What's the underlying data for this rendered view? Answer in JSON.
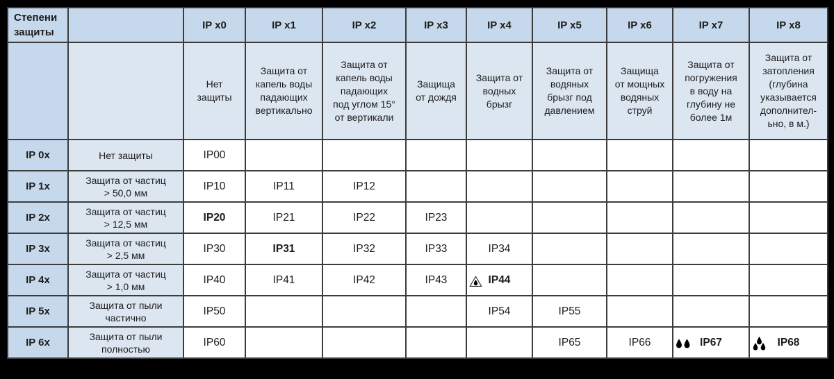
{
  "table": {
    "corner_title": "Степени\nзащиты",
    "columns": [
      {
        "label": "IP x0",
        "description": "Нет\nзащиты"
      },
      {
        "label": "IP x1",
        "description": "Защита от\nкапель воды\nпадающих\nвертикально"
      },
      {
        "label": "IP x2",
        "description": "Защита от\nкапель воды\nпадающих\nпод углом 15°\nот вертикали"
      },
      {
        "label": "IP x3",
        "description": "Защища\nот дождя"
      },
      {
        "label": "IP x4",
        "description": "Защита от\nводных\nбрызг"
      },
      {
        "label": "IP x5",
        "description": "Защита от\nводяных\nбрызг под\nдавлением"
      },
      {
        "label": "IP x6",
        "description": "Защища\nот мощных\nводяных\nструй"
      },
      {
        "label": "IP x7",
        "description": "Защита от\nпогружения\nв воду на\nглубину не\nболее 1м"
      },
      {
        "label": "IP x8",
        "description": "Защита от\nзатопления\n(глубина\nуказывается\nдополнител-\nьно, в м.)"
      }
    ],
    "rows": [
      {
        "label": "IP 0x",
        "description": "Нет защиты",
        "cells": [
          {
            "text": "IP00"
          },
          null,
          null,
          null,
          null,
          null,
          null,
          null,
          null
        ]
      },
      {
        "label": "IP 1x",
        "description": "Защита от частиц\n> 50,0 мм",
        "cells": [
          {
            "text": "IP10"
          },
          {
            "text": "IP11"
          },
          {
            "text": "IP12"
          },
          null,
          null,
          null,
          null,
          null,
          null
        ]
      },
      {
        "label": "IP 2x",
        "description": "Защита от частиц\n> 12,5 мм",
        "cells": [
          {
            "text": "IP20",
            "bold": true
          },
          {
            "text": "IP21"
          },
          {
            "text": "IP22"
          },
          {
            "text": "IP23"
          },
          null,
          null,
          null,
          null,
          null
        ]
      },
      {
        "label": "IP 3x",
        "description": "Защита от частиц\n> 2,5 мм",
        "cells": [
          {
            "text": "IP30"
          },
          {
            "text": "IP31",
            "bold": true
          },
          {
            "text": "IP32"
          },
          {
            "text": "IP33"
          },
          {
            "text": "IP34"
          },
          null,
          null,
          null,
          null
        ]
      },
      {
        "label": "IP 4x",
        "description": "Защита от частиц\n> 1,0 мм",
        "cells": [
          {
            "text": "IP40"
          },
          {
            "text": "IP41"
          },
          {
            "text": "IP42"
          },
          {
            "text": "IP43"
          },
          {
            "text": "IP44",
            "bold": true,
            "icon": "droplet-in-triangle"
          },
          null,
          null,
          null,
          null
        ]
      },
      {
        "label": "IP 5x",
        "description": "Защита от пыли\nчастично",
        "cells": [
          {
            "text": "IP50"
          },
          null,
          null,
          null,
          {
            "text": "IP54"
          },
          {
            "text": "IP55"
          },
          null,
          null,
          null
        ]
      },
      {
        "label": "IP 6x",
        "description": "Защита от пыли\nполностью",
        "cells": [
          {
            "text": "IP60"
          },
          null,
          null,
          null,
          null,
          {
            "text": "IP65"
          },
          {
            "text": "IP66"
          },
          {
            "text": "IP67",
            "bold": true,
            "icon": "two-droplets"
          },
          {
            "text": "IP68",
            "bold": true,
            "icon": "three-droplets"
          }
        ]
      }
    ]
  },
  "colors": {
    "header_fill": "#c6d9ec",
    "subheader_fill": "#dce6f1",
    "cell_fill": "#ffffff",
    "grid_line": "#3c3c3c",
    "frame": "#000000",
    "text": "#1c1c1c"
  }
}
